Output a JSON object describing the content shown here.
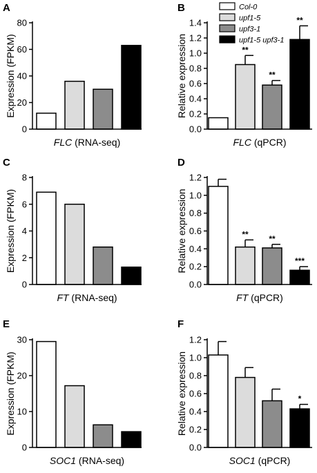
{
  "colors": {
    "col0": "#ffffff",
    "upf15": "#dcdcdc",
    "upf31": "#8c8c8c",
    "double": "#000000",
    "axis": "#000000"
  },
  "legend": [
    {
      "label": "Col-0",
      "color": "#ffffff"
    },
    {
      "label": "upf1-5",
      "color": "#dcdcdc"
    },
    {
      "label": "upf3-1",
      "color": "#8c8c8c"
    },
    {
      "label": "upf1-5 upf3-1",
      "color": "#000000"
    }
  ],
  "chart_data": [
    {
      "panel": "A",
      "type": "bar",
      "xlabel_italic": "FLC",
      "xlabel_rest": " (RNA-seq)",
      "ylabel": "Expression (FPKM)",
      "ylim": [
        0,
        80
      ],
      "yticks": [
        0,
        20,
        40,
        60,
        80
      ],
      "ytick_labels": [
        "0",
        "20",
        "40",
        "60",
        "80"
      ],
      "values": [
        12,
        36,
        30,
        63
      ],
      "errors": null,
      "sig": null
    },
    {
      "panel": "B",
      "type": "bar",
      "xlabel_italic": "FLC",
      "xlabel_rest": " (qPCR)",
      "ylabel": "Relative expression",
      "ylim": [
        0,
        1.4
      ],
      "yticks": [
        0,
        0.2,
        0.4,
        0.6,
        0.8,
        1.0,
        1.2,
        1.4
      ],
      "ytick_labels": [
        "0.0",
        "0.2",
        "0.4",
        "0.6",
        "0.8",
        "1.0",
        "1.2",
        "1.4"
      ],
      "values": [
        0.15,
        0.85,
        0.58,
        1.18
      ],
      "errors": [
        0,
        0.12,
        0.06,
        0.18
      ],
      "sig": [
        "",
        "**",
        "**",
        "**"
      ]
    },
    {
      "panel": "C",
      "type": "bar",
      "xlabel_italic": "FT",
      "xlabel_rest": " (RNA-seq)",
      "ylabel": "Expression (FPKM)",
      "ylim": [
        0,
        8
      ],
      "yticks": [
        0,
        2,
        4,
        6,
        8
      ],
      "ytick_labels": [
        "0",
        "2",
        "4",
        "6",
        "8"
      ],
      "values": [
        6.9,
        6.0,
        2.8,
        1.3
      ],
      "errors": null,
      "sig": null
    },
    {
      "panel": "D",
      "type": "bar",
      "xlabel_italic": "FT",
      "xlabel_rest": " (qPCR)",
      "ylabel": "Relative expression",
      "ylim": [
        0,
        1.2
      ],
      "yticks": [
        0,
        0.2,
        0.4,
        0.6,
        0.8,
        1.0,
        1.2
      ],
      "ytick_labels": [
        "0.0",
        "0.2",
        "0.4",
        "0.6",
        "0.8",
        "1.0",
        "1.2"
      ],
      "values": [
        1.1,
        0.42,
        0.41,
        0.16
      ],
      "errors": [
        0.08,
        0.08,
        0.04,
        0.04
      ],
      "sig": [
        "",
        "**",
        "**",
        "***"
      ]
    },
    {
      "panel": "E",
      "type": "bar",
      "xlabel_italic": "SOC1",
      "xlabel_rest": " (RNA-seq)",
      "ylabel": "Expression (FPKM)",
      "ylim": [
        0,
        30
      ],
      "yticks": [
        0,
        10,
        20,
        30
      ],
      "ytick_labels": [
        "0",
        "10",
        "20",
        "30"
      ],
      "values": [
        29.5,
        17.2,
        6.3,
        4.4
      ],
      "errors": null,
      "sig": null
    },
    {
      "panel": "F",
      "type": "bar",
      "xlabel_italic": "SOC1",
      "xlabel_rest": " (qPCR)",
      "ylabel": "Relative expression",
      "ylim": [
        0,
        1.2
      ],
      "yticks": [
        0,
        0.2,
        0.4,
        0.6,
        0.8,
        1.0,
        1.2
      ],
      "ytick_labels": [
        "0.0",
        "0.2",
        "0.4",
        "0.6",
        "0.8",
        "1.0",
        "1.2"
      ],
      "values": [
        1.03,
        0.78,
        0.52,
        0.43
      ],
      "errors": [
        0.15,
        0.11,
        0.13,
        0.05
      ],
      "sig": [
        "",
        "",
        "",
        "*"
      ]
    }
  ]
}
